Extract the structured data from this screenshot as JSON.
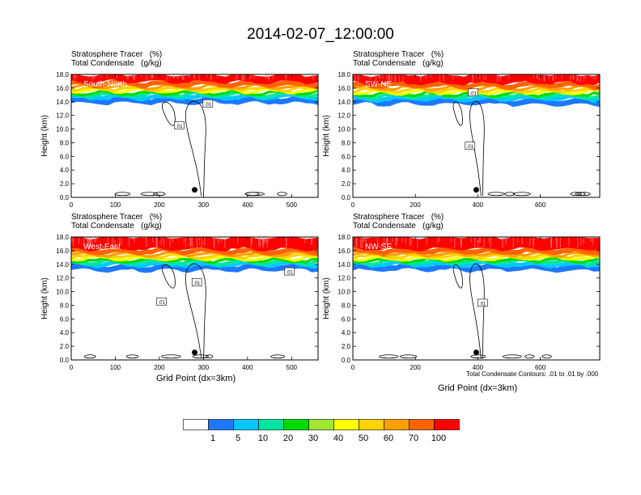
{
  "title": "2014-02-07_12:00:00",
  "panel_header": {
    "line1": "Stratosphere Tracer   (%)",
    "line2": "Total Condensate   (g/kg)"
  },
  "contour_note": "Total Condensate Contours: .01 to .01 by .000",
  "contour_label": ".01",
  "colorbar": {
    "levels": [
      "1",
      "5",
      "10",
      "20",
      "30",
      "40",
      "50",
      "60",
      "70",
      "100"
    ],
    "colors": [
      "#ffffff",
      "#1e78ff",
      "#00c8ff",
      "#00e6a0",
      "#00dc00",
      "#a0e632",
      "#ffff00",
      "#ffd200",
      "#ffa000",
      "#ff6400",
      "#ff0000"
    ]
  },
  "chart_data": [
    {
      "type": "heatmap",
      "name": "South-North",
      "xlabel": "",
      "ylabel": "Height (km)",
      "xlim": [
        0,
        560
      ],
      "ylim": [
        0,
        18
      ],
      "xticks": [
        0,
        100,
        200,
        300,
        400,
        500
      ],
      "yticks": [
        "0.0",
        "2.0",
        "4.0",
        "6.0",
        "8.0",
        "10.0",
        "12.0",
        "14.0",
        "16.0",
        "18.0"
      ],
      "dot_x": 280,
      "dot_y": 1.1,
      "tracer_base_km": 14.2,
      "contour_label_positions": [
        [
          310,
          13.7
        ],
        [
          245,
          10.5
        ]
      ]
    },
    {
      "type": "heatmap",
      "name": "SW-NE",
      "xlabel": "",
      "ylabel": "Height (km)",
      "xlim": [
        0,
        790
      ],
      "ylim": [
        0,
        18
      ],
      "xticks": [
        0,
        200,
        400,
        600
      ],
      "yticks": [
        "0.0",
        "2.0",
        "4.0",
        "6.0",
        "8.0",
        "10.0",
        "12.0",
        "14.0",
        "16.0",
        "18.0"
      ],
      "dot_x": 395,
      "dot_y": 1.1,
      "tracer_base_km": 14.0,
      "contour_label_positions": [
        [
          385,
          15.3
        ],
        [
          375,
          7.5
        ]
      ]
    },
    {
      "type": "heatmap",
      "name": "West-East",
      "xlabel": "Grid Point (dx=3km)",
      "ylabel": "Height (km)",
      "xlim": [
        0,
        560
      ],
      "ylim": [
        0,
        18
      ],
      "xticks": [
        0,
        100,
        200,
        300,
        400,
        500
      ],
      "yticks": [
        "0.0",
        "2.0",
        "4.0",
        "6.0",
        "8.0",
        "10.0",
        "12.0",
        "14.0",
        "16.0",
        "18.0"
      ],
      "dot_x": 280,
      "dot_y": 1.1,
      "tracer_base_km": 13.5,
      "contour_label_positions": [
        [
          285,
          11.3
        ],
        [
          205,
          8.5
        ],
        [
          495,
          12.9
        ]
      ]
    },
    {
      "type": "heatmap",
      "name": "NW-SE",
      "xlabel": "Grid Point (dx=3km)",
      "ylabel": "Height (km)",
      "xlim": [
        0,
        790
      ],
      "ylim": [
        0,
        18
      ],
      "xticks": [
        0,
        200,
        400,
        600
      ],
      "yticks": [
        "0.0",
        "2.0",
        "4.0",
        "6.0",
        "8.0",
        "10.0",
        "12.0",
        "14.0",
        "16.0",
        "18.0"
      ],
      "dot_x": 395,
      "dot_y": 1.1,
      "tracer_base_km": 13.5,
      "contour_label_positions": [
        [
          415,
          8.3
        ]
      ]
    }
  ]
}
